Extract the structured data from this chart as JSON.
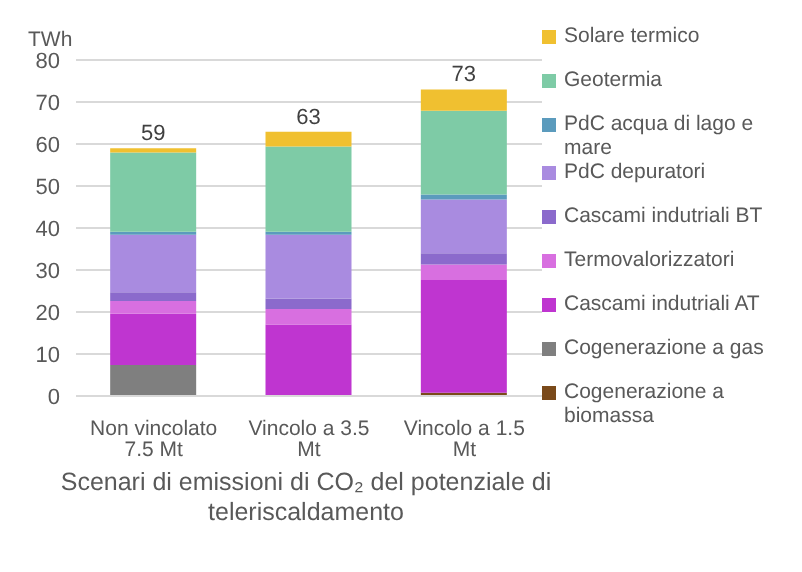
{
  "chart_data": {
    "type": "bar",
    "stacked": true,
    "xlabel": "Scenari di emissioni di CO₂ del potenziale di teleriscaldamento",
    "ylabel": "TWh",
    "categories": [
      "Non vincolato 7.5 Mt",
      "Vincolo a 3.5 Mt",
      "Vincolo a 1.5 Mt"
    ],
    "series": [
      {
        "name": "Cogenerazione a biomassa",
        "color": "#7a4a1a",
        "values": [
          0,
          0,
          0.8
        ]
      },
      {
        "name": "Cogenerazione a gas",
        "color": "#7f7f7f",
        "values": [
          7.4,
          0,
          0
        ]
      },
      {
        "name": "Cascami indutriali AT",
        "color": "#bf35d0",
        "values": [
          12.2,
          17.0,
          26.8
        ]
      },
      {
        "name": "Termovalorizzatori",
        "color": "#d86fe0",
        "values": [
          3.0,
          3.7,
          3.7
        ]
      },
      {
        "name": "Cascami indutriali BT",
        "color": "#8b6acc",
        "values": [
          2.1,
          2.5,
          2.7
        ]
      },
      {
        "name": "PdC depuratori",
        "color": "#a98be0",
        "values": [
          13.7,
          15.2,
          12.8
        ]
      },
      {
        "name": "PdC acqua di lago e mare",
        "color": "#5b9bbd",
        "values": [
          0.7,
          0.7,
          1.2
        ]
      },
      {
        "name": "Geotermia",
        "color": "#7ecba6",
        "values": [
          18.9,
          20.3,
          19.9
        ]
      },
      {
        "name": "Solare termico",
        "color": "#f0c030",
        "values": [
          1.0,
          3.5,
          5.1
        ]
      }
    ],
    "totals": [
      "59",
      "63",
      "73"
    ],
    "ylim": [
      0,
      80
    ],
    "yticks": [
      0,
      10,
      20,
      30,
      40,
      50,
      60,
      70,
      80
    ],
    "grid": "y",
    "legend": "right"
  }
}
